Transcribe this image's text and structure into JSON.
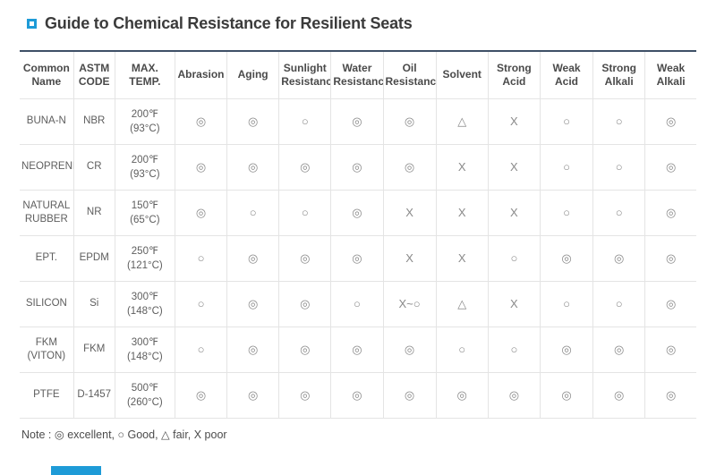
{
  "title": "Guide to Chemical Resistance for Resilient Seats",
  "table": {
    "columns": [
      "Common Name",
      "ASTM CODE",
      "MAX. TEMP.",
      "Abrasion",
      "Aging",
      "Sunlight Resistance",
      "Water Resistance",
      "Oil Resistance",
      "Solvent",
      "Strong Acid",
      "Weak Acid",
      "Strong Alkali",
      "Weak Alkali"
    ],
    "rows": [
      {
        "name": "BUNA-N",
        "astm": "NBR",
        "temp_f": "200℉",
        "temp_c": "(93°C)",
        "ratings": [
          "◎",
          "◎",
          "○",
          "◎",
          "◎",
          "△",
          "X",
          "○",
          "○",
          "◎"
        ]
      },
      {
        "name": "NEOPRENE",
        "astm": "CR",
        "temp_f": "200℉",
        "temp_c": "(93°C)",
        "ratings": [
          "◎",
          "◎",
          "◎",
          "◎",
          "◎",
          "X",
          "X",
          "○",
          "○",
          "◎"
        ]
      },
      {
        "name": "NATURAL RUBBER",
        "astm": "NR",
        "temp_f": "150℉",
        "temp_c": "(65°C)",
        "ratings": [
          "◎",
          "○",
          "○",
          "◎",
          "X",
          "X",
          "X",
          "○",
          "○",
          "◎"
        ]
      },
      {
        "name": "EPT.",
        "astm": "EPDM",
        "temp_f": "250℉",
        "temp_c": "(121°C)",
        "ratings": [
          "○",
          "◎",
          "◎",
          "◎",
          "X",
          "X",
          "○",
          "◎",
          "◎",
          "◎"
        ]
      },
      {
        "name": "SILICON",
        "astm": "Si",
        "temp_f": "300℉",
        "temp_c": "(148°C)",
        "ratings": [
          "○",
          "◎",
          "◎",
          "○",
          "X~○",
          "△",
          "X",
          "○",
          "○",
          "◎"
        ]
      },
      {
        "name": "FKM (VITON)",
        "astm": "FKM",
        "temp_f": "300℉",
        "temp_c": "(148°C)",
        "ratings": [
          "○",
          "◎",
          "◎",
          "◎",
          "◎",
          "○",
          "○",
          "◎",
          "◎",
          "◎"
        ]
      },
      {
        "name": "PTFE",
        "astm": "D-1457",
        "temp_f": "500℉",
        "temp_c": "(260°C)",
        "ratings": [
          "◎",
          "◎",
          "◎",
          "◎",
          "◎",
          "◎",
          "◎",
          "◎",
          "◎",
          "◎"
        ]
      }
    ]
  },
  "legend": {
    "note": "Note : ◎ excellent, ○ Good, △ fair, X poor"
  },
  "colors": {
    "accent_blue": "#1e9bd7",
    "table_top_border": "#3e5067",
    "border_gray": "#e4e4e4"
  }
}
